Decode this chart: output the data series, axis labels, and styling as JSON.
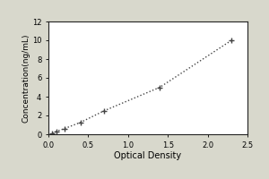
{
  "x": [
    0.05,
    0.1,
    0.2,
    0.4,
    0.7,
    1.4,
    2.3
  ],
  "y": [
    0.1,
    0.3,
    0.6,
    1.25,
    2.5,
    5.0,
    10.0
  ],
  "xlabel": "Optical Density",
  "ylabel": "Concentration(ng/mL)",
  "xlim": [
    0,
    2.5
  ],
  "ylim": [
    0,
    12
  ],
  "xticks": [
    0,
    0.5,
    1,
    1.5,
    2,
    2.5
  ],
  "yticks": [
    0,
    2,
    4,
    6,
    8,
    10,
    12
  ],
  "line_color": "#444444",
  "marker_color": "#444444",
  "figure_facecolor": "#d8d8cc",
  "axes_facecolor": "#ffffff",
  "line_style": "dotted",
  "marker_style": "+"
}
